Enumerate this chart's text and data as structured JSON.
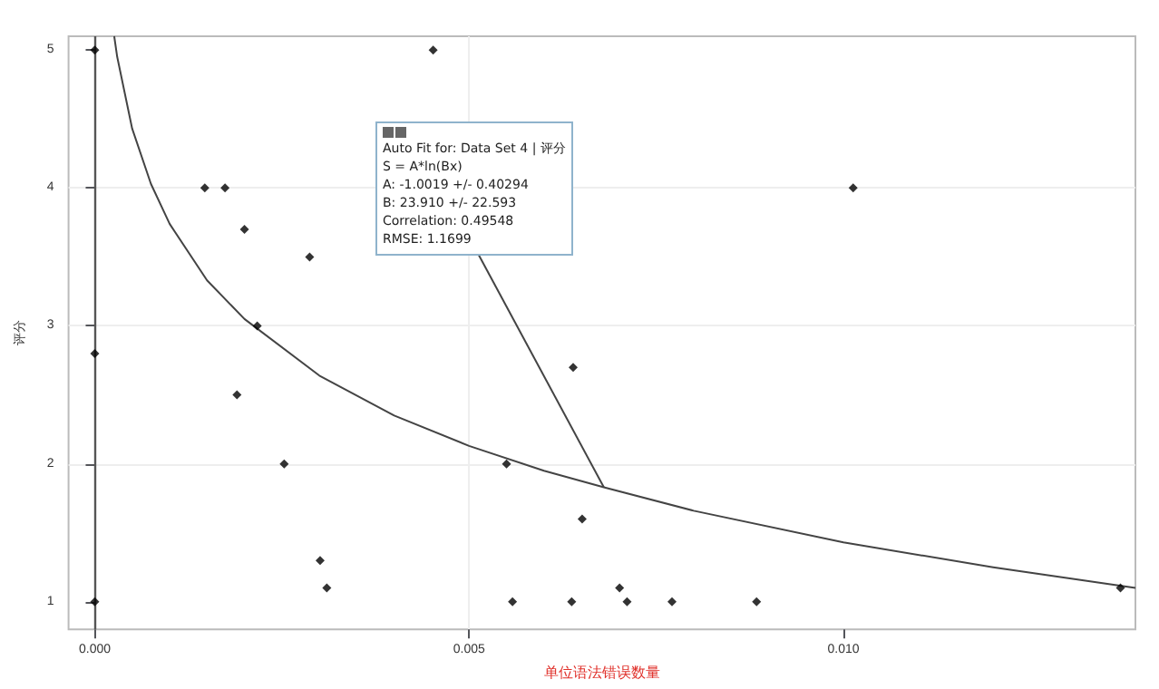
{
  "chart_data": {
    "type": "scatter",
    "xlabel": "单位语法错误数量",
    "ylabel": "评分",
    "xlim": [
      -0.00035,
      0.0139
    ],
    "ylim": [
      0.8,
      5.1
    ],
    "xticks": [
      {
        "value": 0,
        "label": "0.000"
      },
      {
        "value": 0.005,
        "label": "0.005"
      },
      {
        "value": 0.01,
        "label": "0.010"
      }
    ],
    "yticks": [
      1,
      2,
      3,
      4,
      5
    ],
    "grid": true,
    "marker": "diamond",
    "series": [
      {
        "color": "#000000",
        "x": [
          0,
          0,
          0,
          0.00147,
          0.00174,
          0.002,
          0.00217,
          0.0019,
          0.00287,
          0.00253,
          0.00301,
          0.0031,
          0.00452,
          0.0055,
          0.00558,
          0.00639,
          0.00651,
          0.00637,
          0.00701,
          0.00711,
          0.00771,
          0.00884,
          0.01013,
          0.0137
        ],
        "values": [
          5,
          2.8,
          1,
          4,
          4,
          3.7,
          3,
          2.5,
          3.5,
          2,
          1.3,
          1.1,
          5,
          2,
          1,
          2.7,
          1.6,
          1,
          1.1,
          1,
          1,
          1,
          4,
          1.1
        ]
      },
      {
        "type": "line",
        "color": "#444444",
        "marker": "none",
        "x": [
          0.00026,
          0.0003,
          0.0005,
          0.00075,
          0.001,
          0.0015,
          0.002,
          0.003,
          0.004,
          0.005,
          0.006,
          0.0068,
          0.008,
          0.01,
          0.012,
          0.0139
        ],
        "values": [
          5.1,
          4.95,
          4.43,
          4.03,
          3.74,
          3.33,
          3.05,
          2.64,
          2.35,
          2.13,
          1.95,
          1.83,
          1.66,
          1.43,
          1.25,
          1.1
        ]
      }
    ],
    "ref_lines": [
      {
        "axis": "x",
        "value": 0,
        "color": "#555555"
      }
    ],
    "annotations": [
      {
        "text": "Auto Fit for: Data Set 4 | 评分\nS = A*ln(Bx)\nA: -1.0019 +/- 0.40294\nB: 23.910 +/- 22.593\nCorrelation: 0.49548\nRMSE: 1.1699",
        "x": 0.0068,
        "y": 1.83
      }
    ]
  }
}
